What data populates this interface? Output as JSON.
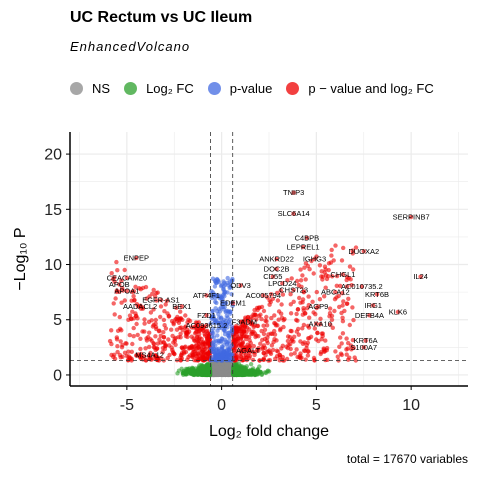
{
  "header": {
    "title": "UC Rectum vs UC Ileum",
    "subtitle": "EnhancedVolcano"
  },
  "legend": {
    "items": [
      {
        "label": "NS",
        "color": "#8a8a8a"
      },
      {
        "label": "Log₂ FC",
        "color": "#2ca02c"
      },
      {
        "label": "p-value",
        "color": "#4169e1"
      },
      {
        "label": "p − value  and  log₂ FC",
        "color": "#ee0000"
      }
    ]
  },
  "caption": "total = 17670 variables",
  "chart_data": {
    "type": "scatter",
    "title": "UC Rectum vs UC Ileum",
    "subtitle": "EnhancedVolcano",
    "xlabel": "Log₂ fold change",
    "ylabel": "−Log₁₀ P",
    "xlim": [
      -8,
      13
    ],
    "ylim": [
      -1,
      22
    ],
    "xticks": [
      -5,
      0,
      5,
      10
    ],
    "yticks": [
      0,
      5,
      10,
      15,
      20
    ],
    "grid": true,
    "thresholds": {
      "log2fc": [
        -0.585,
        0.585
      ],
      "neg_log10_p": 1.3
    },
    "total_variables": 17670,
    "labeled_genes": [
      {
        "gene": "TNIP3",
        "x": 3.8,
        "y": 16.5
      },
      {
        "gene": "SLC6A14",
        "x": 3.8,
        "y": 14.6
      },
      {
        "gene": "SERPINB7",
        "x": 10.0,
        "y": 14.3
      },
      {
        "gene": "C4BPB",
        "x": 4.5,
        "y": 12.4
      },
      {
        "gene": "LEPREL1",
        "x": 4.3,
        "y": 11.6
      },
      {
        "gene": "DUOXA2",
        "x": 7.5,
        "y": 11.2
      },
      {
        "gene": "ENPEP",
        "x": -4.5,
        "y": 10.6
      },
      {
        "gene": "ANKRD22",
        "x": 2.9,
        "y": 10.5
      },
      {
        "gene": "IGHG3",
        "x": 4.9,
        "y": 10.5
      },
      {
        "gene": "DOC2B",
        "x": 2.9,
        "y": 9.6
      },
      {
        "gene": "CHGL1",
        "x": 6.4,
        "y": 9.1
      },
      {
        "gene": "IL24",
        "x": 10.5,
        "y": 8.9
      },
      {
        "gene": "CEACAM20",
        "x": -5.0,
        "y": 8.8
      },
      {
        "gene": "CD55",
        "x": 2.7,
        "y": 8.9
      },
      {
        "gene": "APOB",
        "x": -5.4,
        "y": 8.2
      },
      {
        "gene": "LPCD24",
        "x": 3.2,
        "y": 8.3
      },
      {
        "gene": "AC010735.2",
        "x": 7.4,
        "y": 8.0
      },
      {
        "gene": "CHST23",
        "x": 3.8,
        "y": 7.7
      },
      {
        "gene": "APOA1",
        "x": -5.0,
        "y": 7.6
      },
      {
        "gene": "ABCA12",
        "x": 6.0,
        "y": 7.5
      },
      {
        "gene": "KRT6B",
        "x": 8.2,
        "y": 7.3
      },
      {
        "gene": "ATP4F1",
        "x": -0.8,
        "y": 7.2
      },
      {
        "gene": "ODV3",
        "x": 1.0,
        "y": 8.1
      },
      {
        "gene": "EGFR-AS1",
        "x": -3.2,
        "y": 6.8
      },
      {
        "gene": "AC005794",
        "x": 2.2,
        "y": 7.2
      },
      {
        "gene": "EDEM1",
        "x": 0.6,
        "y": 6.5
      },
      {
        "gene": "IRG1",
        "x": 8.0,
        "y": 6.3
      },
      {
        "gene": "AADACL2",
        "x": -4.3,
        "y": 6.2
      },
      {
        "gene": "BEX1",
        "x": -2.1,
        "y": 6.2
      },
      {
        "gene": "AGP9",
        "x": 5.1,
        "y": 6.2
      },
      {
        "gene": "KLK6",
        "x": 9.3,
        "y": 5.7
      },
      {
        "gene": "DEFB4A",
        "x": 7.8,
        "y": 5.4
      },
      {
        "gene": "FZD1",
        "x": -0.8,
        "y": 5.4
      },
      {
        "gene": "F3ADM",
        "x": 1.2,
        "y": 4.8
      },
      {
        "gene": "AXA10",
        "x": 5.2,
        "y": 4.6
      },
      {
        "gene": "AC093615.2",
        "x": -0.8,
        "y": 4.5
      },
      {
        "gene": "KRT6A",
        "x": 7.6,
        "y": 3.1
      },
      {
        "gene": "S100A7",
        "x": 7.5,
        "y": 2.5
      },
      {
        "gene": "MS4A12",
        "x": -3.8,
        "y": 1.8
      },
      {
        "gene": "AGALT",
        "x": 1.4,
        "y": 2.2
      }
    ],
    "point_groups": [
      {
        "name": "NS",
        "color": "#8a8a8a"
      },
      {
        "name": "Log₂ FC",
        "color": "#2ca02c"
      },
      {
        "name": "p-value",
        "color": "#4169e1"
      },
      {
        "name": "p − value  and  log₂ FC",
        "color": "#ee0000"
      }
    ]
  }
}
